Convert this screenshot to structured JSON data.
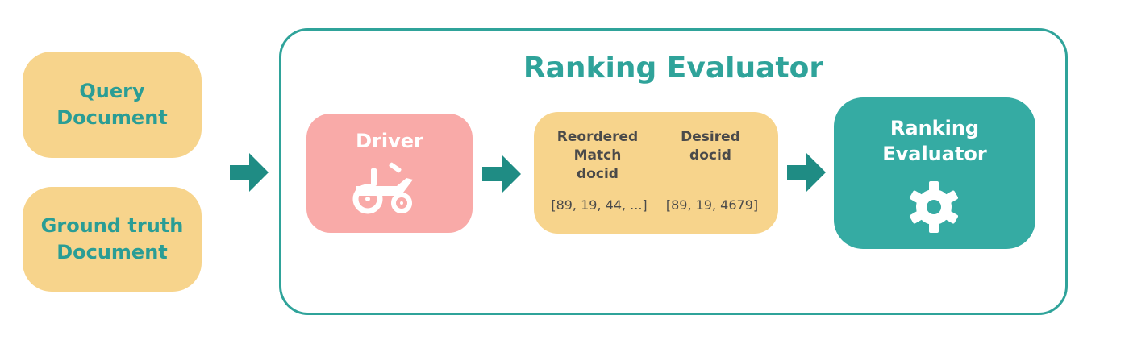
{
  "inputs": {
    "query": [
      "Query",
      "Document"
    ],
    "ground_truth": [
      "Ground truth",
      "Document"
    ]
  },
  "container": {
    "title": "Ranking Evaluator"
  },
  "driver": {
    "label": "Driver",
    "icon": "tractor-icon"
  },
  "docids": {
    "reordered_header": [
      "Reordered",
      "Match",
      "docid"
    ],
    "reordered_value": "[89, 19, 44, ...]",
    "desired_header": [
      "Desired",
      "docid"
    ],
    "desired_value": "[89, 19, 4679]"
  },
  "evaluator": {
    "label": [
      "Ranking",
      "Evaluator"
    ],
    "icon": "gear-icon"
  },
  "colors": {
    "teal": "#2fa39a",
    "teal_fill": "#35aba3",
    "arrow": "#1f8c84",
    "input_fill": "#f7d48c",
    "driver_fill": "#f9aaa8"
  }
}
